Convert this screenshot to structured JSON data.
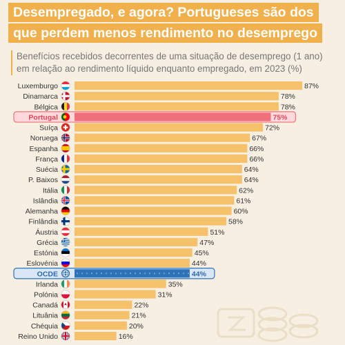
{
  "header": {
    "title_line1": "Desempregado, e agora? Portugueses são dos",
    "title_line2": "que perdem menos rendimento no desemprego",
    "subtitle_line1": "Benefícios recebidos decorrentes de uma situação de desemprego (1 ano)",
    "subtitle_line2": "em relação ao rendimento líquido enquanto empregado, em 2023 (%)"
  },
  "colors": {
    "bar_default": "#f5c26b",
    "bar_portugal": "#ef6f7a",
    "bar_ocde": "#2e72b8",
    "highlight_portugal": "#ffd9dc",
    "highlight_ocde": "#d9e6f5",
    "label_default": "#333333",
    "label_portugal": "#e0455a",
    "label_ocde": "#2e6aad",
    "title_bg": "#f0b04c"
  },
  "chart_data": {
    "type": "bar",
    "orientation": "horizontal",
    "unit": "%",
    "categories": [
      "Luxemburgo",
      "Dinamarca",
      "Bélgica",
      "Portugal",
      "Suíça",
      "Noruega",
      "Espanha",
      "França",
      "Suécia",
      "P. Baixos",
      "Itália",
      "Islândia",
      "Alemanha",
      "Finlândia",
      "Áustria",
      "Grécia",
      "Estónia",
      "Eslovénia",
      "OCDE",
      "Irlanda",
      "Polónia",
      "Canadá",
      "Lituânia",
      "Chéquia",
      "Reino Unido"
    ],
    "values": [
      87,
      78,
      78,
      75,
      72,
      67,
      66,
      66,
      64,
      64,
      62,
      61,
      60,
      58,
      51,
      47,
      45,
      44,
      44,
      35,
      31,
      22,
      21,
      20,
      16
    ],
    "value_labels": [
      "87%",
      "78%",
      "78%",
      "75%",
      "72%",
      "67%",
      "66%",
      "66%",
      "64%",
      "64%",
      "62%",
      "61%",
      "60%",
      "58%",
      "51%",
      "47%",
      "45%",
      "44%",
      "44%",
      "35%",
      "31%",
      "22%",
      "21%",
      "20%",
      "16%"
    ],
    "highlighted": [
      "Portugal",
      "OCDE"
    ],
    "flag_icons": [
      "luxembourg-flag",
      "denmark-flag",
      "belgium-flag",
      "portugal-flag",
      "switzerland-flag",
      "norway-flag",
      "spain-flag",
      "france-flag",
      "sweden-flag",
      "netherlands-flag",
      "italy-flag",
      "iceland-flag",
      "germany-flag",
      "finland-flag",
      "austria-flag",
      "greece-flag",
      "estonia-flag",
      "slovenia-flag",
      "oecd-logo",
      "ireland-flag",
      "poland-flag",
      "canada-flag",
      "lithuania-flag",
      "czechia-flag",
      "uk-flag"
    ],
    "xlim": [
      0,
      90
    ],
    "grid": false,
    "legend": "none"
  }
}
